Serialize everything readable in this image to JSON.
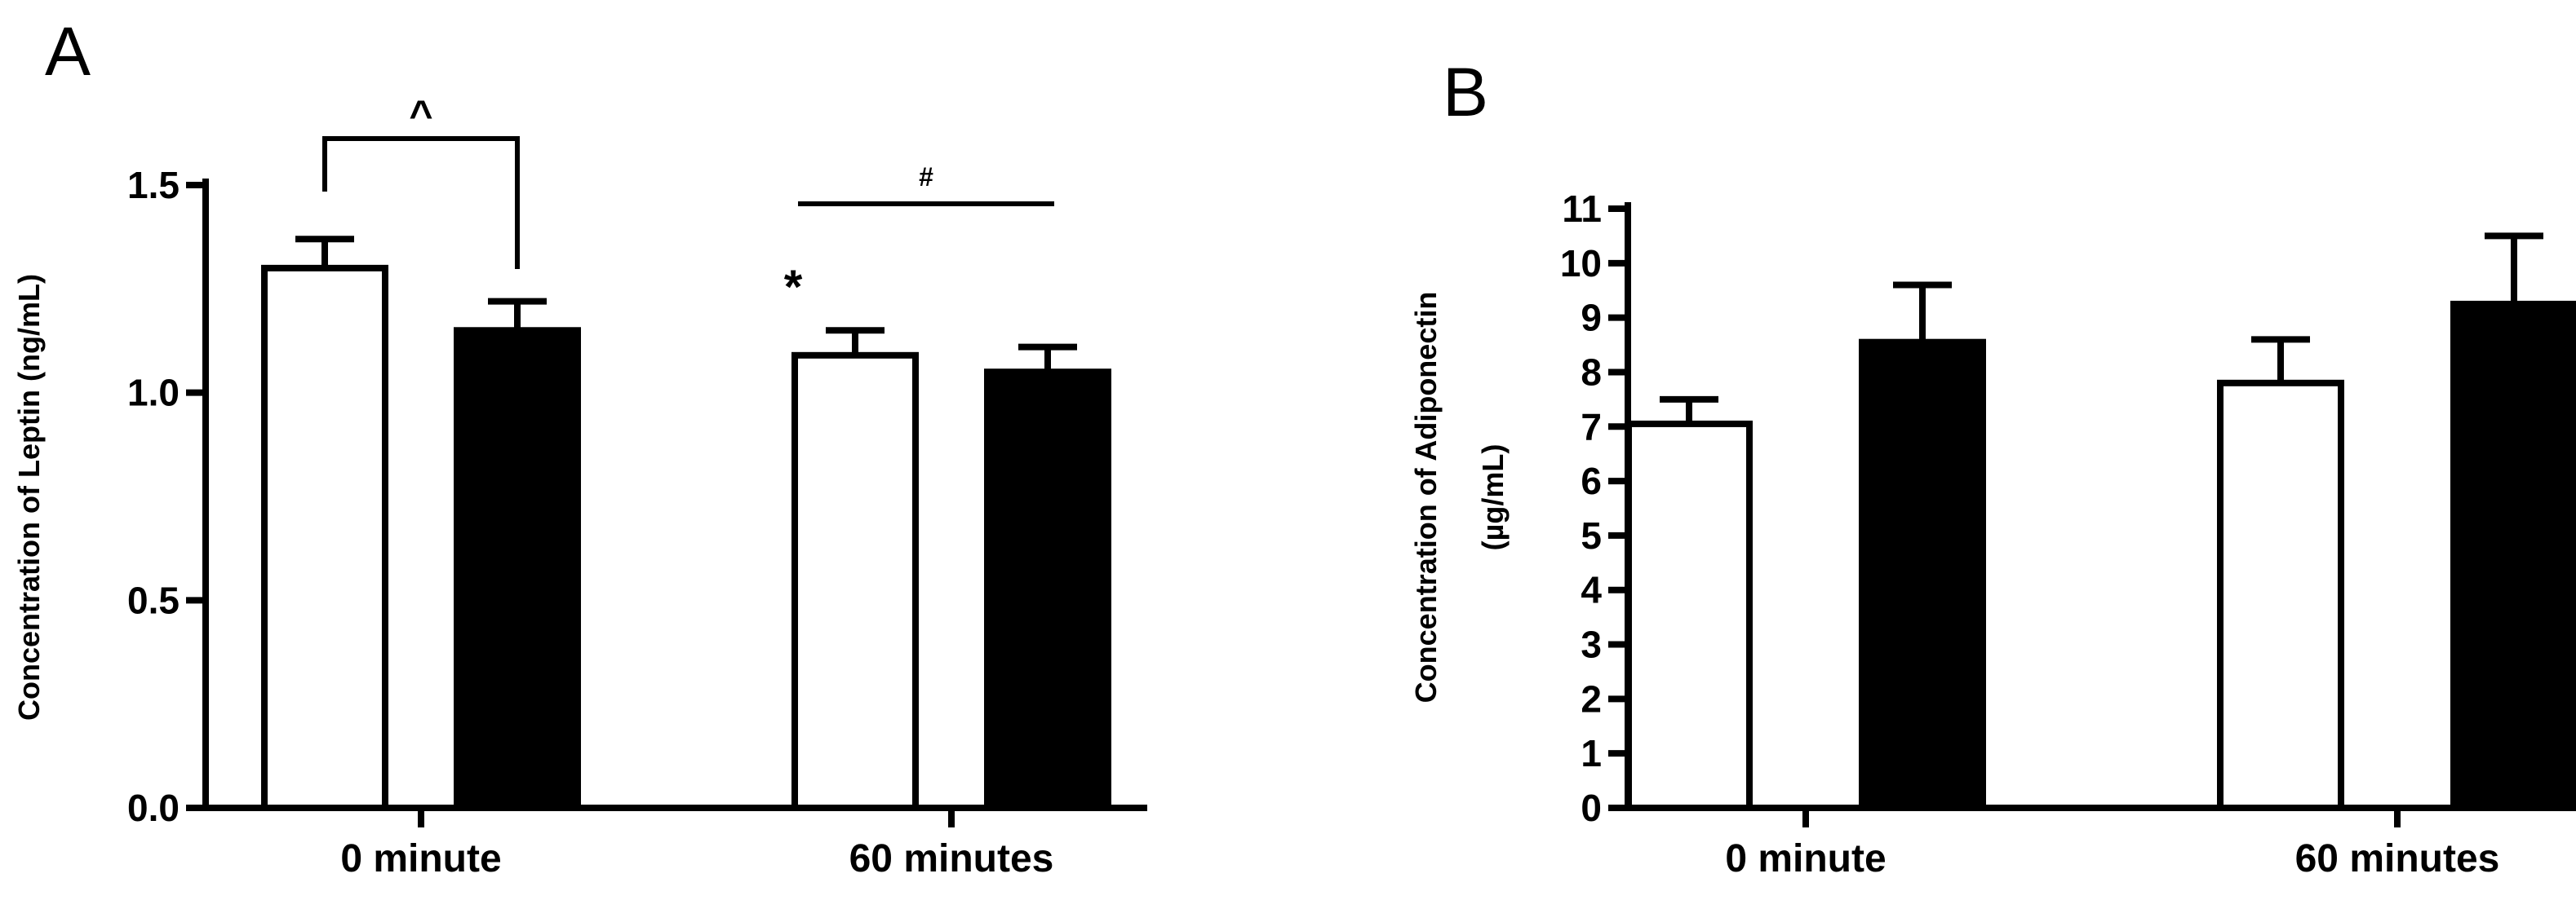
{
  "chart_data": [
    {
      "panel": "A",
      "type": "bar",
      "ylabel": "Concentration of Leptin (ng/mL)",
      "ylim": [
        0,
        1.5
      ],
      "yticks": [
        "0.0",
        "0.5",
        "1.0",
        "1.5"
      ],
      "categories": [
        "0 minute",
        "60 minutes"
      ],
      "series": [
        {
          "fill": "#ffffff",
          "values": [
            1.3,
            1.09
          ],
          "errors": [
            0.07,
            0.06
          ]
        },
        {
          "fill": "#000000",
          "values": [
            1.15,
            1.05
          ],
          "errors": [
            0.07,
            0.06
          ]
        }
      ],
      "annotations": [
        {
          "text": "^",
          "kind": "bracket",
          "category": 0
        },
        {
          "text": "#",
          "kind": "line",
          "category": 1
        },
        {
          "text": "*",
          "kind": "star",
          "category": 1,
          "series": 0
        }
      ],
      "grid": false,
      "legend": "none"
    },
    {
      "panel": "B",
      "type": "bar",
      "ylabel": [
        "Concentration of Adiponectin",
        "(µg/mL)"
      ],
      "ylim": [
        0,
        11
      ],
      "yticks": [
        "0",
        "1",
        "2",
        "3",
        "4",
        "5",
        "6",
        "7",
        "8",
        "9",
        "10",
        "11"
      ],
      "categories": [
        "0 minute",
        "60 minutes"
      ],
      "series": [
        {
          "fill": "#ffffff",
          "values": [
            7.05,
            7.8
          ],
          "errors": [
            0.45,
            0.8
          ]
        },
        {
          "fill": "#000000",
          "values": [
            8.55,
            9.25
          ],
          "errors": [
            1.05,
            1.25
          ]
        }
      ],
      "grid": false,
      "legend": "none"
    }
  ]
}
